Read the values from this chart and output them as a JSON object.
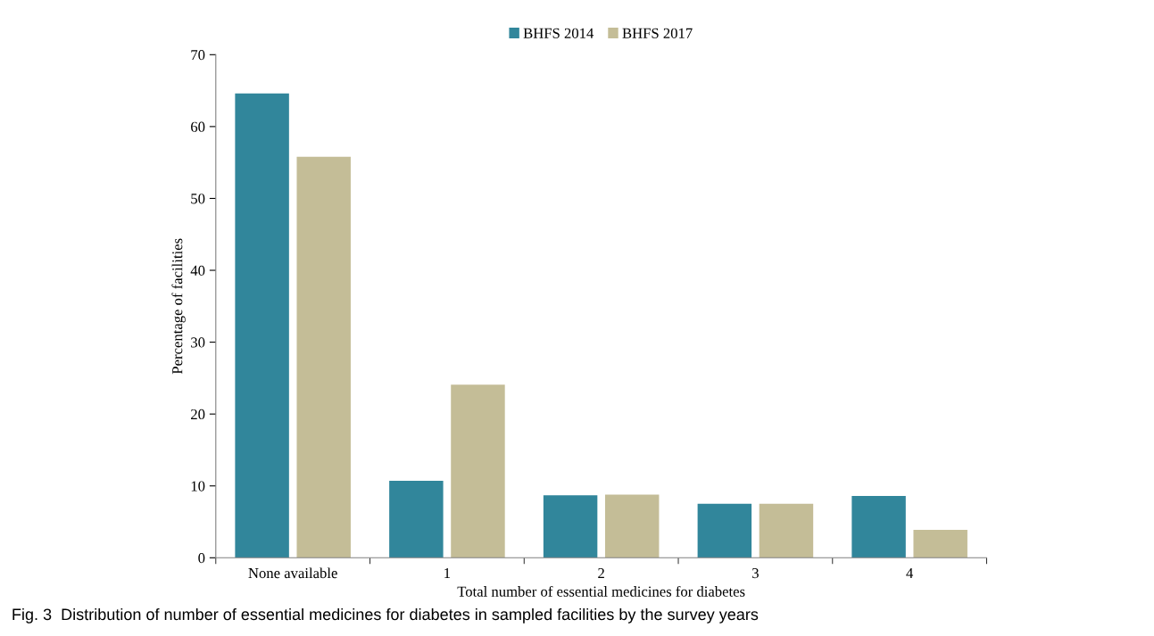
{
  "chart_data": {
    "type": "bar",
    "xlabel": "Total number of essential medicines for diabetes",
    "ylabel": "Percentage of facilities",
    "categories": [
      "None available",
      "1",
      "2",
      "3",
      "4"
    ],
    "series": [
      {
        "name": "BHFS 2014",
        "color": "#31869b",
        "values": [
          64.6,
          10.7,
          8.7,
          7.5,
          8.6
        ]
      },
      {
        "name": "BHFS 2017",
        "color": "#c4bd97",
        "values": [
          55.8,
          24.1,
          8.8,
          7.5,
          3.9
        ]
      }
    ],
    "ylim": [
      0,
      70
    ],
    "yticks": [
      0,
      10,
      20,
      30,
      40,
      50,
      60,
      70
    ],
    "grid": false,
    "legend": "top",
    "annotations": [
      "Fig. 3  Distribution of number of essential medicines for diabetes in sampled facilities by the survey years"
    ]
  }
}
